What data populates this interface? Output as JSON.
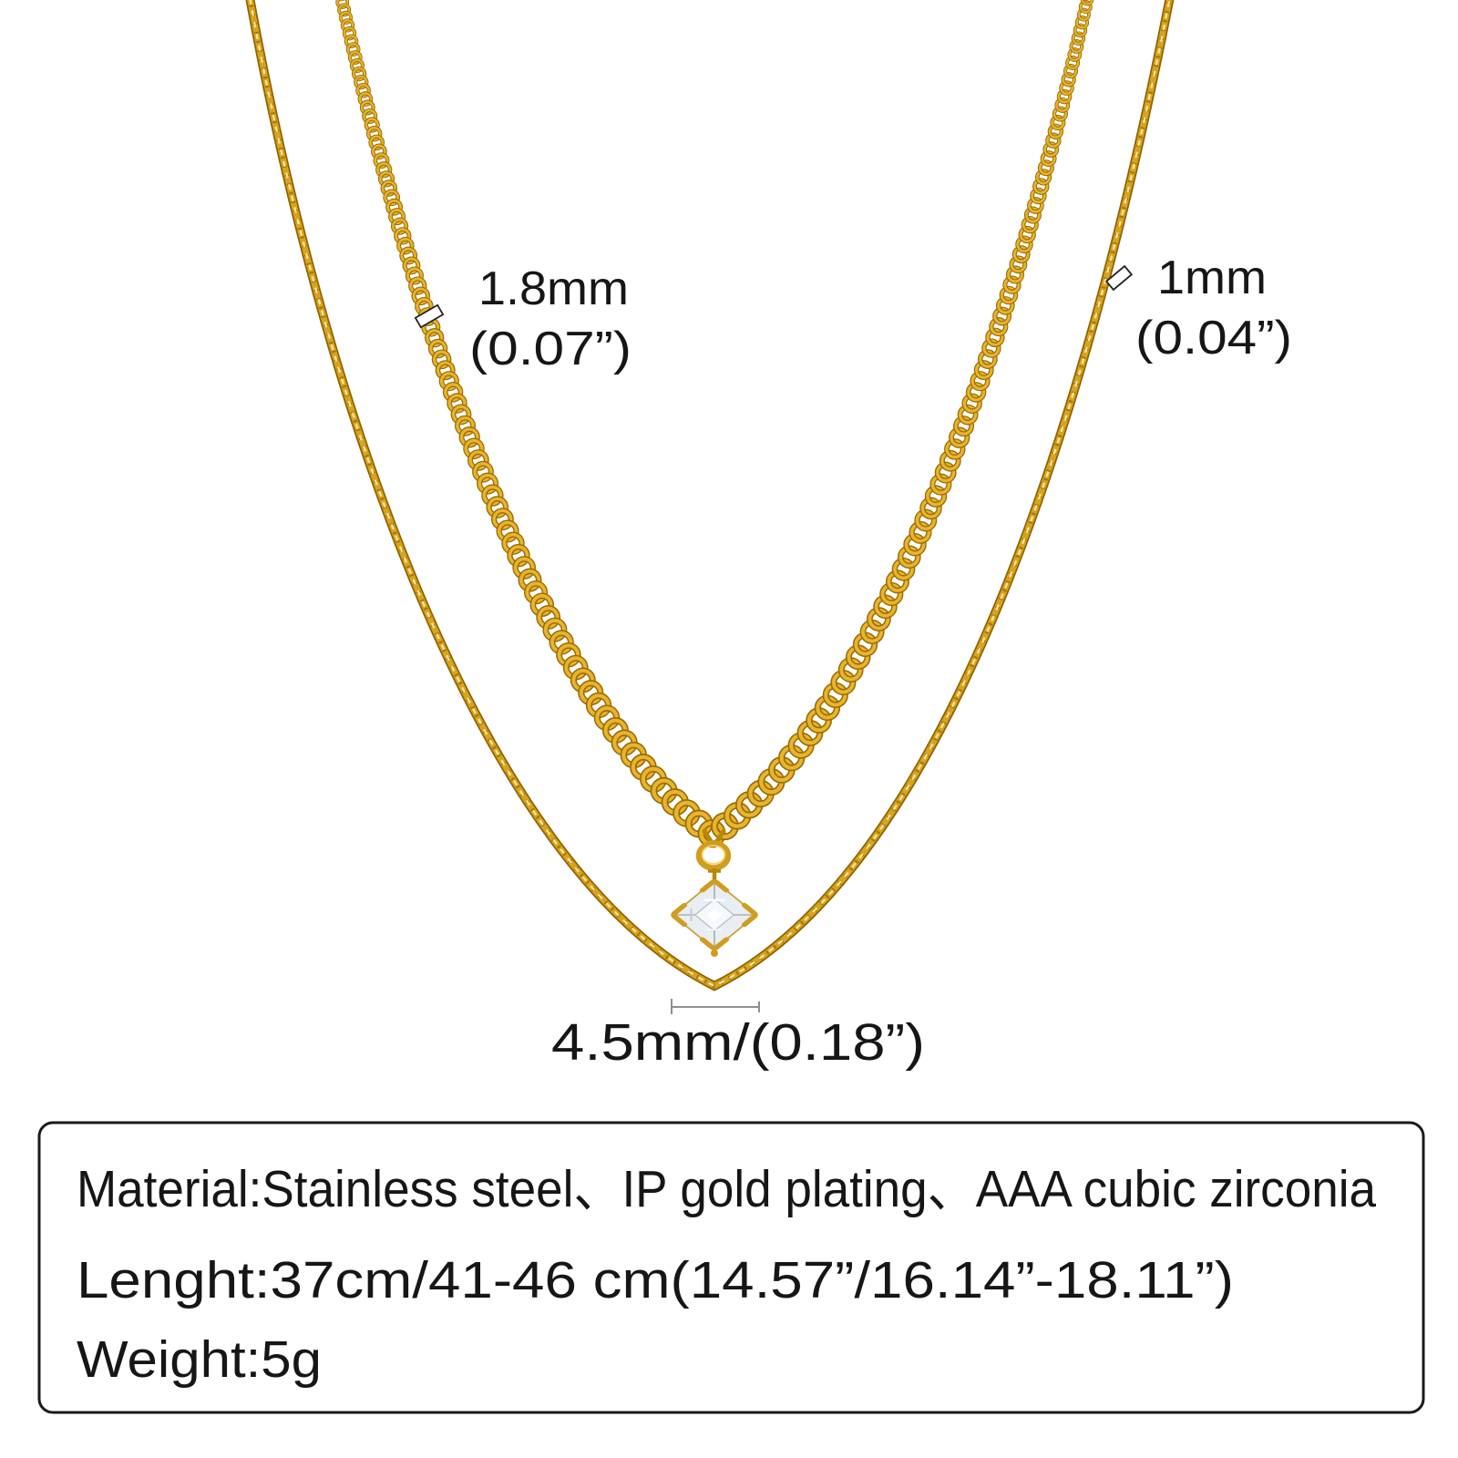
{
  "product_type": "layered-necklace-product-photo",
  "annotations": {
    "cable_chain": {
      "size_mm": "1.8mm",
      "size_in": "(0.07”)"
    },
    "thin_chain": {
      "size_mm": "1mm",
      "size_in": "(0.04”)"
    },
    "pendant": {
      "size": "4.5mm/(0.18”)"
    }
  },
  "specs": {
    "material": "Material:Stainless steel、IP gold plating、AAA cubic zirconia",
    "length": "Lenght:37cm/41-46 cm(14.57”/16.14”-18.11”)",
    "weight": "Weight:5g"
  },
  "colors": {
    "background": "#ffffff",
    "text": "#161616",
    "box_border": "#1a1a1a",
    "gold": "#d7a41e",
    "gold_dark": "#8f6203",
    "gold_deep": "#7a5200",
    "gold_light": "#ffe89a",
    "gold_link_edge": "#9a6b04",
    "gold_link_body": "#e7b42c",
    "stone_base": "#e9eef2",
    "stone_table": "#f6f9fb",
    "stone_line": "#b0b9c2",
    "measure_gray": "#8f8f8f"
  }
}
